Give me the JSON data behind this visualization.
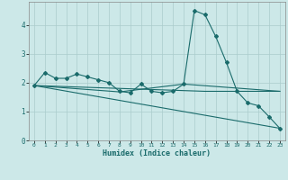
{
  "title": "",
  "xlabel": "Humidex (Indice chaleur)",
  "ylabel": "",
  "background_color": "#cce8e8",
  "grid_color": "#aacccc",
  "line_color": "#1a6b6b",
  "xlim": [
    -0.5,
    23.5
  ],
  "ylim": [
    0,
    4.8
  ],
  "xticks": [
    0,
    1,
    2,
    3,
    4,
    5,
    6,
    7,
    8,
    9,
    10,
    11,
    12,
    13,
    14,
    15,
    16,
    17,
    18,
    19,
    20,
    21,
    22,
    23
  ],
  "yticks": [
    0,
    1,
    2,
    3,
    4
  ],
  "series": [
    {
      "x": [
        0,
        1,
        2,
        3,
        4,
        5,
        6,
        7,
        8,
        9,
        10,
        11,
        12,
        13,
        14,
        15,
        16,
        17,
        18,
        19,
        20,
        21,
        22,
        23
      ],
      "y": [
        1.9,
        2.35,
        2.15,
        2.15,
        2.3,
        2.2,
        2.1,
        2.0,
        1.7,
        1.65,
        1.95,
        1.7,
        1.65,
        1.7,
        1.95,
        4.5,
        4.35,
        3.6,
        2.7,
        1.7,
        1.3,
        1.2,
        0.82,
        0.42
      ],
      "marker": "D",
      "markersize": 2.0
    },
    {
      "x": [
        0,
        23
      ],
      "y": [
        1.9,
        0.42
      ],
      "marker": null,
      "markersize": 0
    },
    {
      "x": [
        0,
        16,
        23
      ],
      "y": [
        1.9,
        1.7,
        1.7
      ],
      "marker": null,
      "markersize": 0
    },
    {
      "x": [
        0,
        8,
        14,
        23
      ],
      "y": [
        1.9,
        1.68,
        1.95,
        1.7
      ],
      "marker": null,
      "markersize": 0
    }
  ]
}
